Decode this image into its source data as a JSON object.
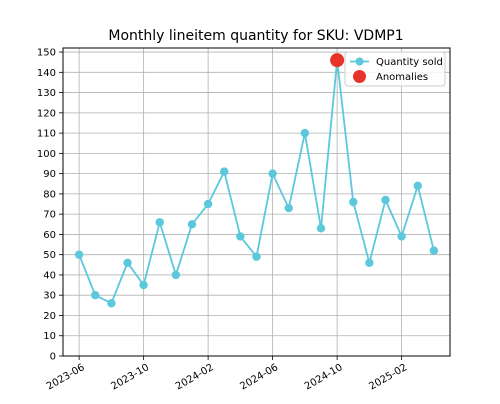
{
  "chart_data": {
    "type": "line",
    "title": "Monthly lineitem quantity for SKU: VDMP1",
    "xlabel": "",
    "ylabel": "",
    "x": [
      "2023-06",
      "2023-07",
      "2023-08",
      "2023-09",
      "2023-10",
      "2023-11",
      "2023-12",
      "2024-01",
      "2024-02",
      "2024-03",
      "2024-04",
      "2024-05",
      "2024-06",
      "2024-07",
      "2024-08",
      "2024-09",
      "2024-10",
      "2024-11",
      "2024-12",
      "2025-01",
      "2025-02",
      "2025-03",
      "2025-04"
    ],
    "series": [
      {
        "name": "Quantity sold",
        "color": "#5bc8dc",
        "values": [
          50,
          30,
          26,
          46,
          35,
          66,
          40,
          65,
          75,
          91,
          59,
          49,
          90,
          73,
          110,
          63,
          146,
          76,
          46,
          77,
          59,
          84,
          52
        ]
      },
      {
        "name": "Anomalies",
        "color": "#e8332a",
        "points": [
          {
            "x": "2024-10",
            "y": 146
          }
        ]
      }
    ],
    "x_ticks": [
      "2023-06",
      "2023-10",
      "2024-02",
      "2024-06",
      "2024-10",
      "2025-02"
    ],
    "y_ticks": [
      0,
      10,
      20,
      30,
      40,
      50,
      60,
      70,
      80,
      90,
      100,
      110,
      120,
      130,
      140,
      150
    ],
    "ylim": [
      0,
      152
    ],
    "xlim": [
      "2023-05",
      "2025-05"
    ],
    "grid": true,
    "legend_position": "top-right"
  }
}
